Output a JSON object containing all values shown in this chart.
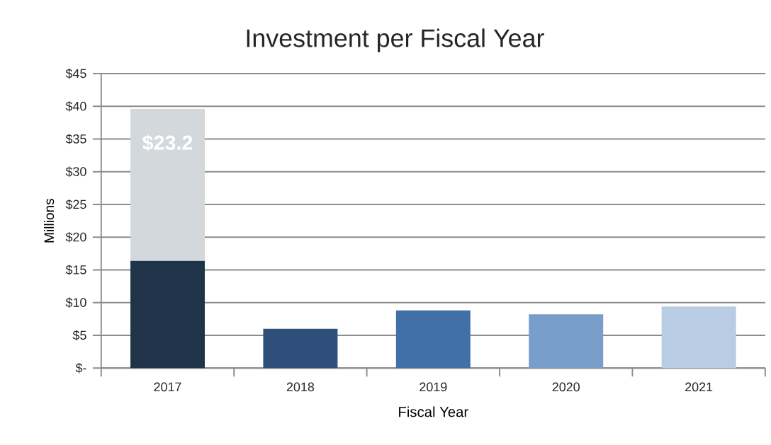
{
  "chart_data": {
    "type": "bar",
    "title": "Investment per Fiscal Year",
    "xlabel": "Fiscal Year",
    "ylabel": "Millions",
    "categories": [
      "2017",
      "2018",
      "2019",
      "2020",
      "2021"
    ],
    "stacked": true,
    "series": [
      {
        "colors": [
          "#1f3349",
          "#2d4f7a",
          "#4170a8",
          "#7a9ecb",
          "#b8cce4"
        ],
        "values": [
          16.4,
          6.0,
          8.8,
          8.2,
          9.4
        ]
      },
      {
        "color": "#d3d8dc",
        "values": [
          23.2,
          null,
          null,
          null,
          null
        ],
        "value_labels": [
          "$23.2",
          null,
          null,
          null,
          null
        ]
      }
    ],
    "ylim": [
      0,
      45
    ],
    "yticks": [
      {
        "value": 0,
        "label": "$-"
      },
      {
        "value": 5,
        "label": "$5"
      },
      {
        "value": 10,
        "label": "$10"
      },
      {
        "value": 15,
        "label": "$15"
      },
      {
        "value": 20,
        "label": "$20"
      },
      {
        "value": 25,
        "label": "$25"
      },
      {
        "value": 30,
        "label": "$30"
      },
      {
        "value": 35,
        "label": "$35"
      },
      {
        "value": 40,
        "label": "$40"
      },
      {
        "value": 45,
        "label": "$45"
      }
    ],
    "grid": "y"
  }
}
